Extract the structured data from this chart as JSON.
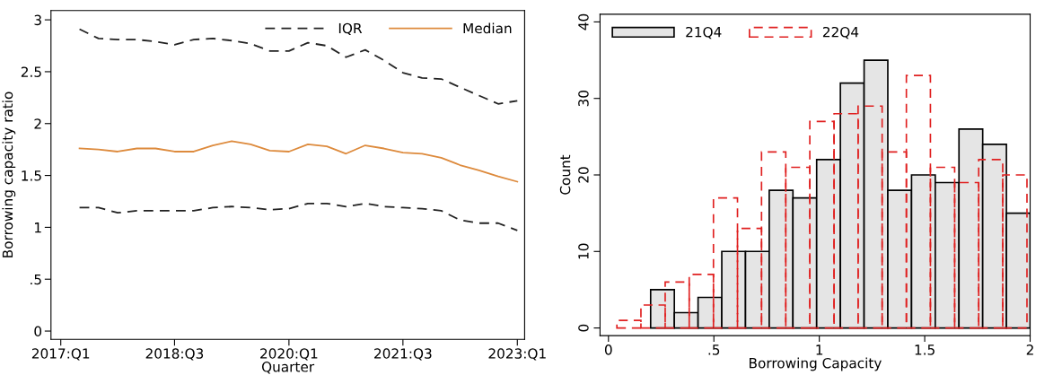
{
  "chart_data": [
    {
      "type": "line",
      "xlabel": "Quarter",
      "ylabel": "Borrowing capacity ratio",
      "x": [
        "2017-04",
        "2017-07",
        "2017-10",
        "2018-01",
        "2018-04",
        "2018-07",
        "2018-10",
        "2019-01",
        "2019-04",
        "2019-07",
        "2019-10",
        "2020-01",
        "2020-04",
        "2020-07",
        "2020-10",
        "2021-01",
        "2021-04",
        "2021-07",
        "2021-10",
        "2022-01",
        "2022-04",
        "2022-07",
        "2022-10",
        "2023-01"
      ],
      "xlim": [
        "2016-11-15",
        "2023-02-05"
      ],
      "xticks": [
        {
          "value": "2017-01",
          "label": "2017:Q1"
        },
        {
          "value": "2018-07",
          "label": "2018:Q3"
        },
        {
          "value": "2020-01",
          "label": "2020:Q1"
        },
        {
          "value": "2021-07",
          "label": "2021:Q3"
        },
        {
          "value": "2023-01",
          "label": "2023:Q1"
        }
      ],
      "ylim": [
        -0.08,
        3.09
      ],
      "yticks": [
        0,
        {
          "value": 0.5,
          "label": ".5"
        },
        1,
        1.5,
        2,
        2.5,
        3
      ],
      "grid": false,
      "legend": "top right",
      "series": [
        {
          "name": "IQR",
          "color": "#222222",
          "line_style": "dashed",
          "values": [
            2.91,
            2.82,
            2.81,
            2.81,
            2.79,
            2.76,
            2.81,
            2.82,
            2.8,
            2.77,
            2.7,
            2.7,
            2.78,
            2.75,
            2.64,
            2.71,
            2.61,
            2.49,
            2.44,
            2.43,
            2.35,
            2.27,
            2.19,
            2.22
          ]
        },
        {
          "name": "Median",
          "color": "#dd8a3c",
          "line_style": "solid",
          "values": [
            1.76,
            1.75,
            1.73,
            1.76,
            1.76,
            1.73,
            1.73,
            1.79,
            1.83,
            1.8,
            1.74,
            1.73,
            1.8,
            1.78,
            1.71,
            1.79,
            1.76,
            1.72,
            1.71,
            1.67,
            1.6,
            1.55,
            1.49,
            1.44
          ]
        },
        {
          "color": "#222222",
          "line_style": "dashed",
          "values": [
            1.19,
            1.19,
            1.14,
            1.16,
            1.16,
            1.16,
            1.16,
            1.19,
            1.2,
            1.19,
            1.17,
            1.18,
            1.23,
            1.23,
            1.2,
            1.23,
            1.2,
            1.19,
            1.18,
            1.16,
            1.07,
            1.04,
            1.04,
            0.97
          ]
        }
      ]
    },
    {
      "type": "histogram",
      "xlabel": "Borrowing Capacity",
      "ylabel": "Count",
      "xlim": [
        -0.04,
        2
      ],
      "xticks": [
        0,
        {
          "value": 0.5,
          "label": ".5"
        },
        1,
        1.5,
        2
      ],
      "ylim": [
        -1,
        41
      ],
      "yticks": [
        0,
        10,
        20,
        30,
        40
      ],
      "grid": false,
      "legend": "top left",
      "bins": [
        0.2,
        0.3125,
        0.425,
        0.5375,
        0.65,
        0.7625,
        0.875,
        0.9875,
        1.1,
        1.2125,
        1.325,
        1.4375,
        1.55,
        1.6625,
        1.775,
        1.8875,
        2.0
      ],
      "series": [
        {
          "name": "21Q4",
          "color": "#e5e5e5",
          "line_style": "solid",
          "values": [
            5,
            2,
            4,
            10,
            10,
            18,
            17,
            22,
            32,
            35,
            18,
            20,
            19,
            26,
            24,
            15
          ]
        },
        {
          "name": "22Q4",
          "color": "#e02020",
          "line_style": "dashed",
          "bins": [
            0.04,
            0.154,
            0.269,
            0.383,
            0.498,
            0.612,
            0.726,
            0.841,
            0.955,
            1.07,
            1.184,
            1.298,
            1.413,
            1.527,
            1.642,
            1.756,
            1.87,
            1.985
          ],
          "values": [
            1,
            3,
            6,
            7,
            17,
            13,
            23,
            21,
            27,
            28,
            29,
            23,
            33,
            21,
            19,
            22,
            20
          ]
        }
      ]
    }
  ]
}
